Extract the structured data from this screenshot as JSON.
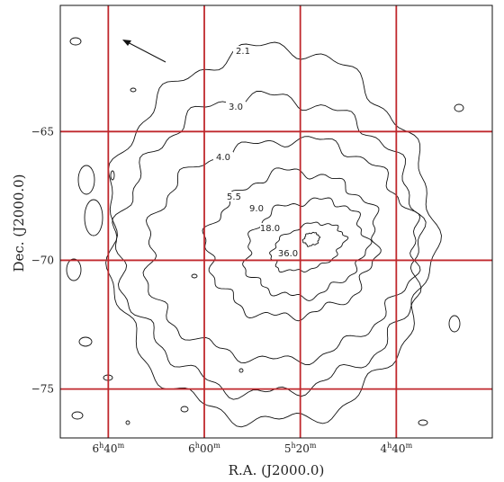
{
  "chart_data": {
    "type": "contour",
    "xlabel": "R.A. (J2000.0)",
    "ylabel": "Dec. (J2000.0)",
    "x_ticks": [
      {
        "h": "6",
        "m": "40",
        "ra_hours": 6.6667
      },
      {
        "h": "6",
        "m": "00",
        "ra_hours": 6.0
      },
      {
        "h": "5",
        "m": "20",
        "ra_hours": 5.3333
      },
      {
        "h": "4",
        "m": "40",
        "ra_hours": 4.6667
      }
    ],
    "y_ticks": [
      -65,
      -70,
      -75
    ],
    "xlim_hours": [
      7.0,
      4.0
    ],
    "ylim_deg": [
      -76.9,
      -60.1
    ],
    "grid": true,
    "grid_color": "#c0282d",
    "contour_levels": [
      "2.1",
      "3.0",
      "4.0",
      "5.5",
      "9.0",
      "18.0",
      "36.0"
    ],
    "arrow": "direction-arrow"
  }
}
